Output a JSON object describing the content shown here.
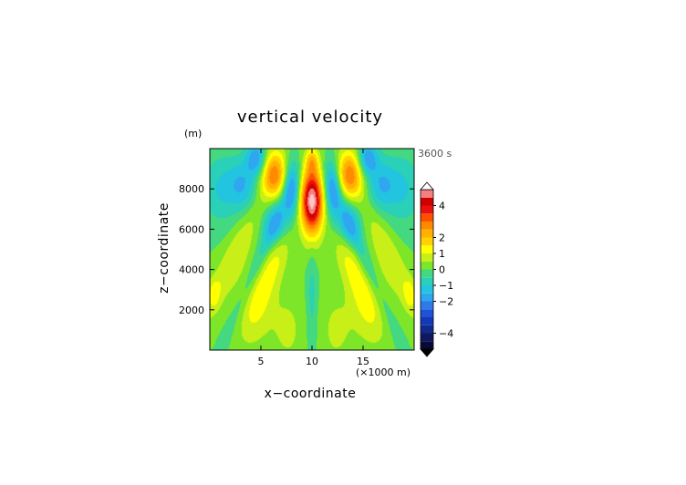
{
  "chart_data": {
    "type": "heatmap",
    "title": "vertical velocity",
    "xlabel": "x−coordinate",
    "ylabel": "z−coordinate",
    "x_unit": "(×1000 m)",
    "y_unit": "(m)",
    "time_label": "3600 s",
    "xlim": [
      0,
      20
    ],
    "ylim": [
      0,
      10000
    ],
    "x_ticks": [
      5,
      10,
      15
    ],
    "y_ticks": [
      2000,
      4000,
      6000,
      8000
    ],
    "x_tick_labels": [
      "5",
      "10",
      "15"
    ],
    "y_tick_labels": [
      "2000",
      "4000",
      "6000",
      "8000"
    ],
    "colorbar": {
      "levels": [
        -5,
        -4.5,
        -4,
        -3.5,
        -3,
        -2.5,
        -2,
        -1.5,
        -1,
        -0.5,
        0,
        0.5,
        1,
        1.5,
        2,
        2.5,
        3,
        3.5,
        4,
        4.5,
        5
      ],
      "tick_values": [
        -4,
        -2,
        -1,
        0,
        1,
        2,
        4
      ],
      "tick_labels": [
        "−4",
        "−2",
        "−1",
        "0",
        "1",
        "2",
        "4"
      ],
      "colors": [
        "#0a0a3a",
        "#101860",
        "#122a8c",
        "#1438b8",
        "#1f52d6",
        "#2e7ae8",
        "#2ea6f0",
        "#22c4e0",
        "#2ad0b8",
        "#44d880",
        "#7ee628",
        "#c8f018",
        "#ffff00",
        "#ffd200",
        "#ffb000",
        "#ff8a00",
        "#ff5000",
        "#e81010",
        "#d00000",
        "#f58080",
        "#ffc4c4"
      ],
      "extend_min_color": "#000000",
      "extend_max_color": "#ffffff"
    },
    "field_description": [
      {
        "x": 10.0,
        "z": 7300,
        "w": 4.8
      },
      {
        "x": 6.3,
        "z": 8700,
        "w": 2.7
      },
      {
        "x": 13.7,
        "z": 8700,
        "w": 2.7
      },
      {
        "x": 8.0,
        "z": 7800,
        "w": -2.3
      },
      {
        "x": 12.0,
        "z": 7800,
        "w": -2.3
      },
      {
        "x": 4.6,
        "z": 9500,
        "w": -2.0
      },
      {
        "x": 15.4,
        "z": 9500,
        "w": -2.0
      },
      {
        "x": 10.0,
        "z": 2500,
        "w": -0.6
      }
    ]
  }
}
